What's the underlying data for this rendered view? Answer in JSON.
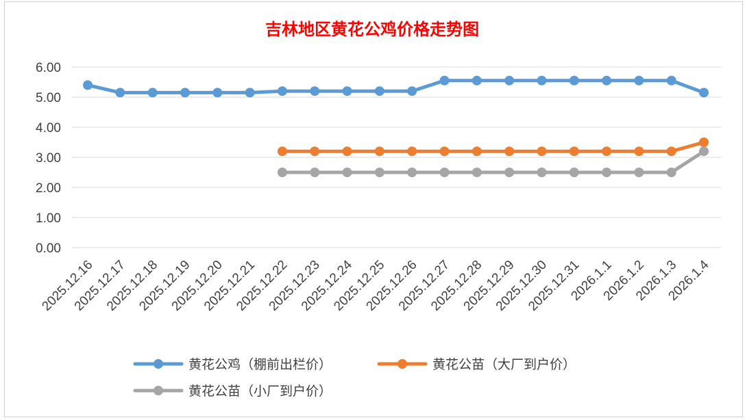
{
  "chart_data": {
    "type": "line",
    "title": "吉林地区黄花公鸡价格走势图",
    "categories": [
      "2025.12.16",
      "2025.12.17",
      "2025.12.18",
      "2025.12.19",
      "2025.12.20",
      "2025.12.21",
      "2025.12.22",
      "2025.12.23",
      "2025.12.24",
      "2025.12.25",
      "2025.12.26",
      "2025.12.27",
      "2025.12.28",
      "2025.12.29",
      "2025.12.30",
      "2025.12.31",
      "2026.1.1",
      "2026.1.2",
      "2026.1.3",
      "2026.1.4"
    ],
    "ylim": [
      0,
      6
    ],
    "yticks": [
      "0.00",
      "1.00",
      "2.00",
      "3.00",
      "4.00",
      "5.00",
      "6.00"
    ],
    "grid": true,
    "legend_position": "bottom",
    "series": [
      {
        "name": "黄花公鸡（棚前出栏价）",
        "color": "#5b9bd5",
        "values": [
          5.4,
          5.15,
          5.15,
          5.15,
          5.15,
          5.15,
          5.2,
          5.2,
          5.2,
          5.2,
          5.2,
          5.55,
          5.55,
          5.55,
          5.55,
          5.55,
          5.55,
          5.55,
          5.55,
          5.15
        ]
      },
      {
        "name": "黄花公苗（大厂到户价）",
        "color": "#ed7d31",
        "values": [
          null,
          null,
          null,
          null,
          null,
          null,
          3.2,
          3.2,
          3.2,
          3.2,
          3.2,
          3.2,
          3.2,
          3.2,
          3.2,
          3.2,
          3.2,
          3.2,
          3.2,
          3.5
        ]
      },
      {
        "name": "黄花公苗（小厂到户价）",
        "color": "#a5a5a5",
        "values": [
          null,
          null,
          null,
          null,
          null,
          null,
          2.5,
          2.5,
          2.5,
          2.5,
          2.5,
          2.5,
          2.5,
          2.5,
          2.5,
          2.5,
          2.5,
          2.5,
          2.5,
          3.2
        ]
      }
    ]
  }
}
